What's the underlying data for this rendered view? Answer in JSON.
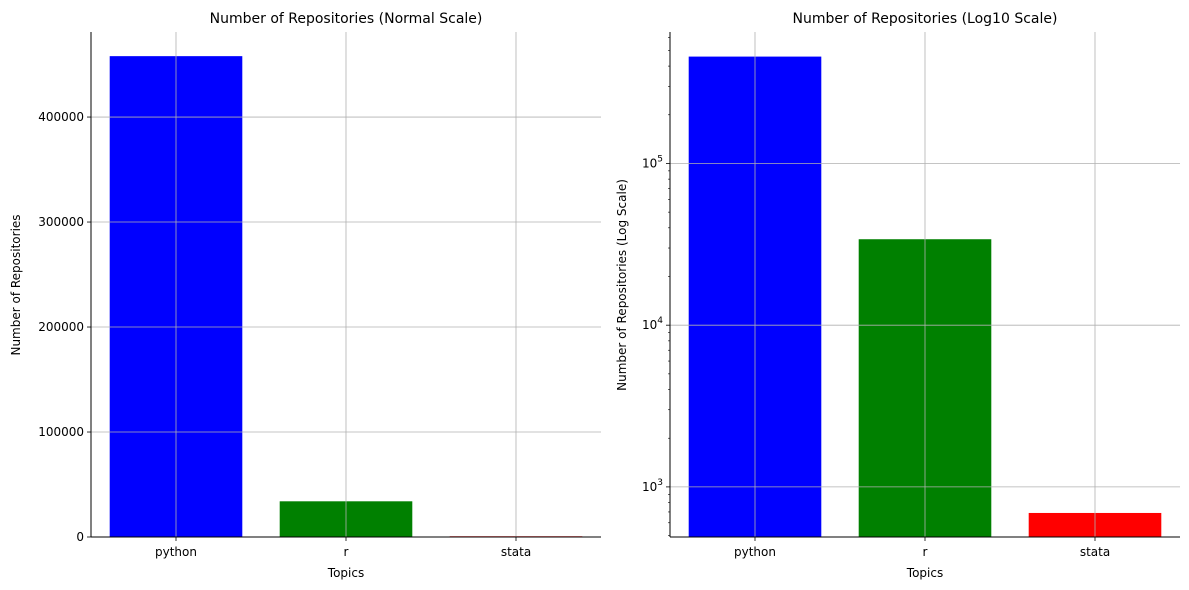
{
  "chart_data": [
    {
      "type": "bar",
      "title": "Number of Repositories (Normal Scale)",
      "xlabel": "Topics",
      "ylabel": "Number of Repositories",
      "categories": [
        "python",
        "r",
        "stata"
      ],
      "values": [
        458000,
        34000,
        690
      ],
      "colors": [
        "#0000ff",
        "#008000",
        "#ff0000"
      ],
      "yscale": "linear",
      "ylim": [
        0,
        481000
      ],
      "yticks": [
        0,
        100000,
        200000,
        300000,
        400000
      ],
      "ytick_labels": [
        "0",
        "100000",
        "200000",
        "300000",
        "400000"
      ],
      "grid": true
    },
    {
      "type": "bar",
      "title": "Number of Repositories (Log10 Scale)",
      "xlabel": "Topics",
      "ylabel": "Number of Repositories (Log Scale)",
      "categories": [
        "python",
        "r",
        "stata"
      ],
      "values": [
        458000,
        34000,
        690
      ],
      "colors": [
        "#0000ff",
        "#008000",
        "#ff0000"
      ],
      "yscale": "log10",
      "ylim": [
        490,
        650000
      ],
      "yticks": [
        1000,
        10000,
        100000
      ],
      "ytick_labels": [
        {
          "base": "10",
          "exp": "3"
        },
        {
          "base": "10",
          "exp": "4"
        },
        {
          "base": "10",
          "exp": "5"
        }
      ],
      "grid": true
    }
  ]
}
